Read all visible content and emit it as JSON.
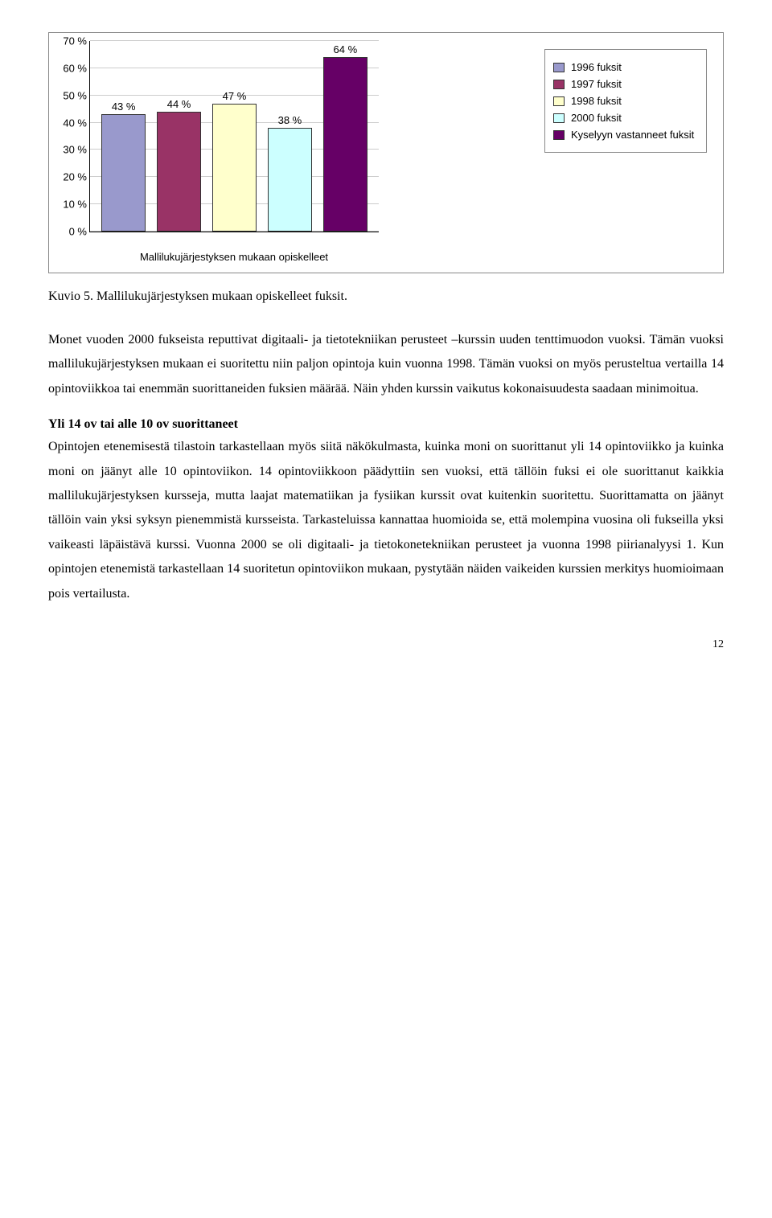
{
  "chart": {
    "type": "bar",
    "x_axis_label": "Mallilukujärjestyksen mukaan opiskelleet",
    "y_ticks": [
      "0 %",
      "10 %",
      "20 %",
      "30 %",
      "40 %",
      "50 %",
      "60 %",
      "70 %"
    ],
    "y_max": 70,
    "bars": [
      {
        "value": 43,
        "label": "43 %",
        "color": "#9999cc"
      },
      {
        "value": 44,
        "label": "44 %",
        "color": "#993366"
      },
      {
        "value": 47,
        "label": "47 %",
        "color": "#ffffcc"
      },
      {
        "value": 38,
        "label": "38 %",
        "color": "#ccffff"
      },
      {
        "value": 64,
        "label": "64 %",
        "color": "#660066"
      }
    ],
    "bar_border": "#333333",
    "grid_color": "#cccccc",
    "legend": [
      {
        "label": "1996 fuksit",
        "color": "#9999cc"
      },
      {
        "label": "1997 fuksit",
        "color": "#993366"
      },
      {
        "label": "1998 fuksit",
        "color": "#ffffcc"
      },
      {
        "label": "2000 fuksit",
        "color": "#ccffff"
      },
      {
        "label": "Kyselyyn vastanneet fuksit",
        "color": "#660066"
      }
    ]
  },
  "caption": "Kuvio 5. Mallilukujärjestyksen mukaan opiskelleet fuksit.",
  "para1": "Monet vuoden 2000 fukseista reputtivat digitaali- ja tietotekniikan perusteet –kurssin uuden tenttimuodon vuoksi. Tämän vuoksi mallilukujärjestyksen mukaan ei suoritettu niin paljon opintoja kuin vuonna 1998. Tämän vuoksi on myös perusteltua vertailla 14 opintoviikkoa tai enemmän suorittaneiden fuksien määrää. Näin yhden kurssin vaikutus kokonaisuudesta saadaan minimoitua.",
  "subhead": "Yli 14 ov tai alle 10 ov suorittaneet",
  "para2": "Opintojen etenemisestä tilastoin tarkastellaan myös siitä näkökulmasta, kuinka moni on suorittanut yli 14 opintoviikko ja kuinka moni on jäänyt alle 10 opintoviikon. 14 opintoviikkoon päädyttiin sen vuoksi, että tällöin fuksi ei ole suorittanut kaikkia mallilukujärjestyksen kursseja, mutta laajat matematiikan ja fysiikan kurssit ovat kuitenkin suoritettu. Suorittamatta on jäänyt tällöin vain yksi syksyn pienemmistä kursseista. Tarkasteluissa kannattaa huomioida se, että molempina vuosina oli fukseilla yksi vaikeasti läpäistävä kurssi. Vuonna 2000 se oli digitaali- ja tietokonetekniikan perusteet ja vuonna 1998 piirianalyysi 1. Kun opintojen etenemistä tarkastellaan 14 suoritetun opintoviikon mukaan, pystytään näiden vaikeiden kurssien merkitys huomioimaan pois vertailusta.",
  "page_number": "12"
}
